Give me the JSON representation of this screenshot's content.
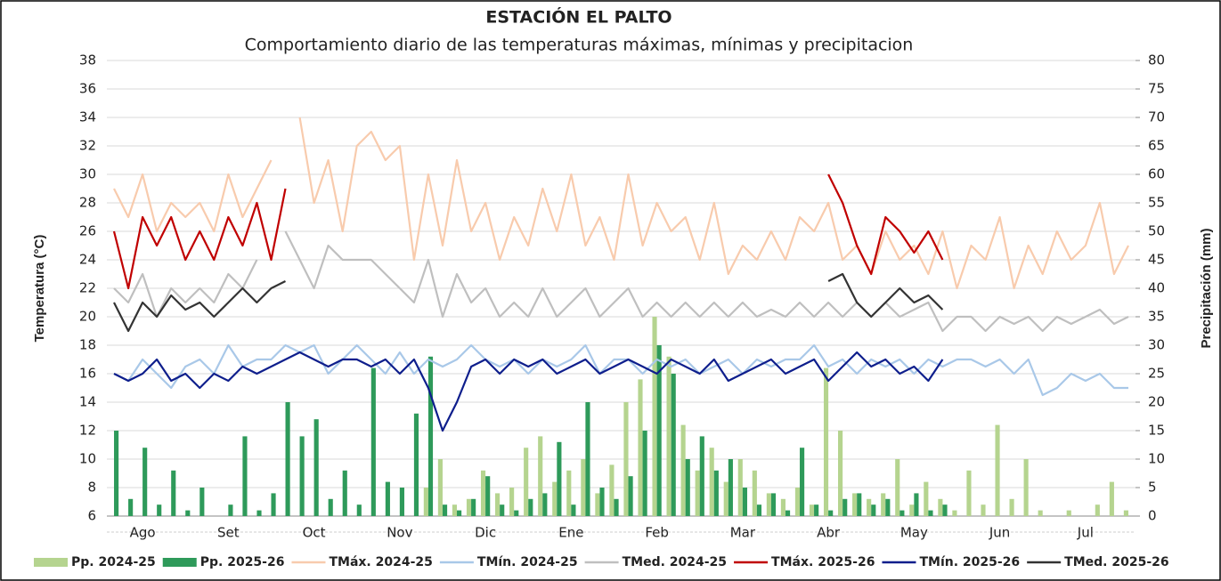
{
  "chart_data": {
    "type": "bar-line",
    "title": "ESTACIÓN EL PALTO",
    "subtitle": "Comportamiento diario de las temperaturas máximas, mínimas y precipitacion",
    "y_label": "Temperatura (°C)",
    "y2_label": "Precipitación (mm)",
    "ylim": [
      6,
      38
    ],
    "yticks": [
      6,
      8,
      10,
      12,
      14,
      16,
      18,
      20,
      22,
      24,
      26,
      28,
      30,
      32,
      34,
      36,
      38
    ],
    "y2lim": [
      0,
      80
    ],
    "y2ticks": [
      0,
      5,
      10,
      15,
      20,
      25,
      30,
      35,
      40,
      45,
      50,
      55,
      60,
      65,
      70,
      75,
      80
    ],
    "categories": [
      null,
      null,
      "Ago",
      null,
      null,
      null,
      null,
      null,
      "Set",
      null,
      null,
      null,
      null,
      null,
      "Oct",
      null,
      null,
      null,
      null,
      null,
      "Nov",
      null,
      null,
      null,
      null,
      null,
      "Dic",
      null,
      null,
      null,
      null,
      null,
      "Ene",
      null,
      null,
      null,
      null,
      null,
      "Feb",
      null,
      null,
      null,
      null,
      null,
      "Mar",
      null,
      null,
      null,
      null,
      null,
      "Abr",
      null,
      null,
      null,
      null,
      null,
      "May",
      null,
      null,
      null,
      null,
      null,
      "Jun",
      null,
      null,
      null,
      null,
      null,
      "Jul",
      null,
      null,
      null
    ],
    "series": [
      {
        "name": "Pp. 2024-25",
        "kind": "bar",
        "axis": "y2",
        "color": "#b5d48f",
        "values": [
          0,
          0,
          0,
          0,
          0,
          0,
          0,
          0,
          0,
          0,
          0,
          0,
          0,
          0,
          0,
          0,
          0,
          0,
          0,
          0,
          0,
          0,
          5,
          10,
          2,
          3,
          8,
          4,
          5,
          12,
          14,
          6,
          8,
          10,
          4,
          9,
          20,
          24,
          35,
          28,
          16,
          8,
          12,
          6,
          10,
          8,
          4,
          3,
          5,
          2,
          26,
          15,
          4,
          3,
          4,
          10,
          2,
          6,
          3,
          1,
          8,
          2,
          16,
          3,
          10,
          1,
          0,
          1,
          0,
          2,
          6,
          1
        ]
      },
      {
        "name": "Pp. 2025-26",
        "kind": "bar",
        "axis": "y2",
        "color": "#2e9a5a",
        "values": [
          15,
          3,
          12,
          2,
          8,
          1,
          5,
          0,
          2,
          14,
          1,
          4,
          20,
          14,
          17,
          3,
          8,
          2,
          26,
          6,
          5,
          18,
          28,
          2,
          1,
          3,
          7,
          2,
          1,
          3,
          4,
          13,
          2,
          20,
          5,
          3,
          7,
          15,
          30,
          25,
          10,
          14,
          8,
          10,
          5,
          2,
          4,
          1,
          12,
          2,
          1,
          3,
          4,
          2,
          3,
          1,
          4,
          1,
          2,
          0,
          0,
          0,
          0,
          0,
          0,
          0,
          0,
          0,
          0,
          0,
          0,
          0
        ]
      },
      {
        "name": "TMáx. 2024-25",
        "kind": "line",
        "color": "#f8cbad",
        "values": [
          29,
          27,
          30,
          26,
          28,
          27,
          28,
          26,
          30,
          27,
          29,
          31,
          null,
          34,
          28,
          31,
          26,
          32,
          33,
          31,
          32,
          24,
          30,
          25,
          31,
          26,
          28,
          24,
          27,
          25,
          29,
          26,
          30,
          25,
          27,
          24,
          30,
          25,
          28,
          26,
          27,
          24,
          28,
          23,
          25,
          24,
          26,
          24,
          27,
          26,
          28,
          24,
          25,
          23,
          26,
          24,
          25,
          23,
          26,
          22,
          25,
          24,
          27,
          22,
          25,
          23,
          26,
          24,
          25,
          28,
          23,
          25
        ]
      },
      {
        "name": "TMín. 2024-25",
        "kind": "line",
        "color": "#a9c8e8",
        "values": [
          16,
          15.5,
          17,
          16,
          15,
          16.5,
          17,
          16,
          18,
          16.5,
          17,
          17,
          18,
          17.5,
          18,
          16,
          17,
          18,
          17,
          16,
          17.5,
          16,
          17,
          16.5,
          17,
          18,
          17,
          16.5,
          17,
          16,
          17,
          16.5,
          17,
          18,
          16,
          17,
          17,
          16,
          17,
          16.5,
          17,
          16,
          16.5,
          17,
          16,
          17,
          16.5,
          17,
          17,
          18,
          16.5,
          17,
          16,
          17,
          16.5,
          17,
          16,
          17,
          16.5,
          17,
          17,
          16.5,
          17,
          16,
          17,
          14.5,
          15,
          16,
          15.5,
          16,
          15,
          15
        ]
      },
      {
        "name": "TMed. 2024-25",
        "kind": "line",
        "color": "#bfbfbf",
        "values": [
          22,
          21,
          23,
          20,
          22,
          21,
          22,
          21,
          23,
          22,
          24,
          null,
          26,
          24,
          22,
          25,
          24,
          24,
          24,
          23,
          22,
          21,
          24,
          20,
          23,
          21,
          22,
          20,
          21,
          20,
          22,
          20,
          21,
          22,
          20,
          21,
          22,
          20,
          21,
          20,
          21,
          20,
          21,
          20,
          21,
          20,
          20.5,
          20,
          21,
          20,
          21,
          20,
          21,
          20,
          21,
          20,
          20.5,
          21,
          19,
          20,
          20,
          19,
          20,
          19.5,
          20,
          19,
          20,
          19.5,
          20,
          20.5,
          19.5,
          20
        ]
      },
      {
        "name": "TMáx. 2025-26",
        "kind": "line",
        "color": "#c00000",
        "values": [
          26,
          22,
          27,
          25,
          27,
          24,
          26,
          24,
          27,
          25,
          28,
          24,
          29,
          null,
          null,
          null,
          null,
          null,
          null,
          null,
          null,
          null,
          null,
          null,
          null,
          null,
          null,
          null,
          null,
          null,
          null,
          null,
          null,
          null,
          null,
          null,
          null,
          null,
          null,
          null,
          null,
          null,
          null,
          null,
          null,
          null,
          null,
          null,
          null,
          null,
          30,
          28,
          25,
          23,
          27,
          26,
          24.5,
          26,
          24,
          null,
          null,
          null,
          null,
          null,
          null,
          null,
          null,
          null,
          null,
          null,
          null,
          null
        ]
      },
      {
        "name": "TMín. 2025-26",
        "kind": "line",
        "color": "#0e1e8c",
        "values": [
          16,
          15.5,
          16,
          17,
          15.5,
          16,
          15,
          16,
          15.5,
          16.5,
          16,
          16.5,
          17,
          17.5,
          17,
          16.5,
          17,
          17,
          16.5,
          17,
          16,
          17,
          15,
          12,
          14,
          16.5,
          17,
          16,
          17,
          16.5,
          17,
          16,
          16.5,
          17,
          16,
          16.5,
          17,
          16.5,
          16,
          17,
          16.5,
          16,
          17,
          15.5,
          16,
          16.5,
          17,
          16,
          16.5,
          17,
          15.5,
          16.5,
          17.5,
          16.5,
          17,
          16,
          16.5,
          15.5,
          17,
          null,
          null,
          null,
          null,
          null,
          null,
          null,
          null,
          null,
          null,
          null,
          null,
          null
        ]
      },
      {
        "name": "TMed. 2025-26",
        "kind": "line",
        "color": "#333333",
        "values": [
          21,
          19,
          21,
          20,
          21.5,
          20.5,
          21,
          20,
          21,
          22,
          21,
          22,
          22.5,
          null,
          null,
          null,
          null,
          null,
          null,
          null,
          null,
          null,
          null,
          null,
          null,
          null,
          null,
          null,
          null,
          null,
          null,
          null,
          null,
          null,
          null,
          null,
          null,
          null,
          null,
          null,
          null,
          null,
          null,
          null,
          null,
          null,
          null,
          null,
          null,
          null,
          22.5,
          23,
          21,
          20,
          21,
          22,
          21,
          21.5,
          20.5,
          null,
          null,
          null,
          null,
          null,
          null,
          null,
          null,
          null,
          null,
          null,
          null,
          null
        ]
      }
    ]
  }
}
